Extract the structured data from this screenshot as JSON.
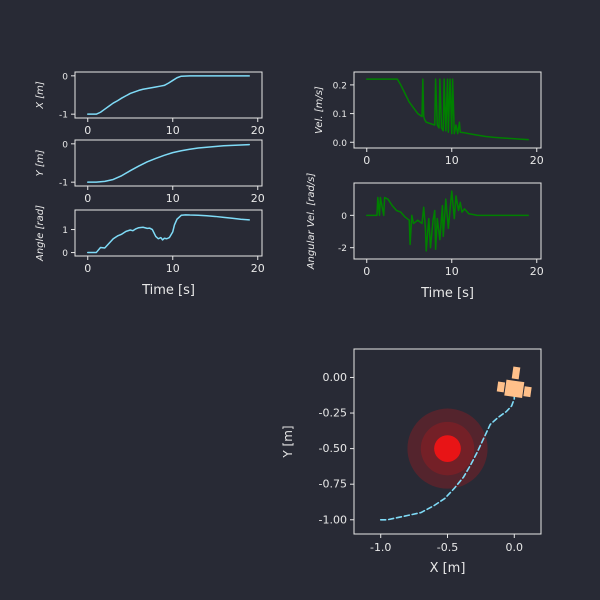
{
  "chart_data": [
    {
      "id": "x-plot",
      "type": "line",
      "ylabel": "X [m]",
      "xlabel": "",
      "xlim": [
        -1.5,
        20.5
      ],
      "ylim": [
        -1.1,
        0.1
      ],
      "xticks": [
        0,
        10,
        20
      ],
      "yticks": [
        -1,
        0
      ],
      "series": [
        {
          "color": "#7fdbf7",
          "x": [
            0,
            1,
            1.5,
            2,
            2.5,
            3,
            3.5,
            4,
            4.5,
            5,
            5.5,
            6,
            6.5,
            7,
            7.5,
            8,
            8.5,
            9,
            9.5,
            10,
            10.5,
            11,
            12,
            13,
            14,
            15,
            16,
            17,
            18,
            19
          ],
          "y": [
            -1,
            -1,
            -0.95,
            -0.87,
            -0.79,
            -0.71,
            -0.65,
            -0.58,
            -0.52,
            -0.46,
            -0.42,
            -0.38,
            -0.35,
            -0.33,
            -0.31,
            -0.29,
            -0.27,
            -0.25,
            -0.19,
            -0.12,
            -0.05,
            -0.01,
            0,
            0,
            0,
            0,
            0,
            0,
            0,
            0
          ]
        }
      ]
    },
    {
      "id": "y-plot",
      "type": "line",
      "ylabel": "Y [m]",
      "xlabel": "",
      "xlim": [
        -1.5,
        20.5
      ],
      "ylim": [
        -1.1,
        0.1
      ],
      "xticks": [
        0,
        10,
        20
      ],
      "yticks": [
        -1,
        0
      ],
      "series": [
        {
          "color": "#7fdbf7",
          "x": [
            0,
            1,
            2,
            3,
            4,
            5,
            6,
            7,
            8,
            9,
            10,
            11,
            12,
            13,
            14,
            15,
            16,
            17,
            18,
            19
          ],
          "y": [
            -1,
            -1,
            -0.98,
            -0.93,
            -0.83,
            -0.7,
            -0.58,
            -0.47,
            -0.38,
            -0.3,
            -0.23,
            -0.18,
            -0.14,
            -0.11,
            -0.09,
            -0.07,
            -0.05,
            -0.04,
            -0.03,
            -0.02
          ]
        }
      ]
    },
    {
      "id": "angle-plot",
      "type": "line",
      "ylabel": "Angle [rad]",
      "xlabel": "Time [s]",
      "xlim": [
        -1.5,
        20.5
      ],
      "ylim": [
        -0.15,
        1.85
      ],
      "xticks": [
        0,
        10,
        20
      ],
      "yticks": [
        0,
        1
      ],
      "series": [
        {
          "color": "#7fdbf7",
          "x": [
            0,
            1,
            1.5,
            2,
            2.5,
            3,
            3.5,
            4,
            4.5,
            5,
            5.3,
            5.6,
            6,
            6.5,
            7,
            7.3,
            7.6,
            8,
            8.3,
            8.6,
            8.8,
            9,
            9.3,
            9.6,
            10,
            10.2,
            10.5,
            11,
            11.5,
            12,
            13,
            14,
            15,
            16,
            17,
            18,
            19
          ],
          "y": [
            0,
            0,
            0.22,
            0.2,
            0.4,
            0.6,
            0.72,
            0.8,
            0.92,
            0.98,
            0.95,
            1.02,
            1.08,
            1.1,
            1.05,
            1.06,
            1.0,
            0.7,
            0.6,
            0.65,
            0.55,
            0.62,
            0.6,
            0.65,
            0.9,
            1.2,
            1.45,
            1.62,
            1.64,
            1.63,
            1.62,
            1.6,
            1.57,
            1.53,
            1.49,
            1.45,
            1.42
          ]
        }
      ]
    },
    {
      "id": "vel-plot",
      "type": "line",
      "ylabel": "Vel. [m/s]",
      "xlabel": "",
      "xlim": [
        -1.5,
        20.5
      ],
      "ylim": [
        -0.02,
        0.245
      ],
      "xticks": [
        0,
        10,
        20
      ],
      "yticks": [
        0.0,
        0.1,
        0.2
      ],
      "series": [
        {
          "color": "#008000",
          "x": [
            0,
            1,
            2,
            3,
            3.6,
            4,
            4.5,
            5,
            5.5,
            6,
            6.5,
            6.6,
            6.7,
            6.8,
            7,
            7.5,
            8,
            8.1,
            8.3,
            8.5,
            8.6,
            8.8,
            9,
            9.1,
            9.3,
            9.5,
            9.6,
            9.8,
            10,
            10.1,
            10.3,
            10.5,
            10.7,
            10.9,
            11,
            11.5,
            12,
            13,
            14,
            15,
            16,
            17,
            18,
            19
          ],
          "y": [
            0.22,
            0.22,
            0.22,
            0.22,
            0.22,
            0.2,
            0.17,
            0.14,
            0.12,
            0.1,
            0.09,
            0.22,
            0.09,
            0.08,
            0.07,
            0.065,
            0.06,
            0.22,
            0.06,
            0.05,
            0.22,
            0.05,
            0.04,
            0.22,
            0.04,
            0.22,
            0.035,
            0.22,
            0.03,
            0.22,
            0.03,
            0.06,
            0.03,
            0.07,
            0.035,
            0.033,
            0.03,
            0.025,
            0.02,
            0.017,
            0.015,
            0.013,
            0.011,
            0.009
          ]
        }
      ]
    },
    {
      "id": "angvel-plot",
      "type": "line",
      "ylabel": "Angular Vel. [rad/s]",
      "xlabel": "Time [s]",
      "xlim": [
        -1.5,
        20.5
      ],
      "ylim": [
        -2.7,
        2.0
      ],
      "xticks": [
        0,
        10,
        20
      ],
      "yticks": [
        -2,
        0
      ],
      "series": [
        {
          "color": "#008000",
          "x": [
            0,
            1,
            1.2,
            1.3,
            1.5,
            1.6,
            2,
            2.1,
            2.5,
            3,
            3.5,
            4,
            4.5,
            5,
            5.1,
            5.3,
            5.5,
            6,
            6.5,
            6.7,
            6.9,
            7,
            7.3,
            7.5,
            7.8,
            8,
            8.1,
            8.3,
            8.6,
            8.9,
            9,
            9.3,
            9.6,
            10,
            10.3,
            10.5,
            10.8,
            11,
            11.2,
            11.5,
            12,
            12.5,
            13,
            14,
            15,
            16,
            17,
            18,
            19
          ],
          "y": [
            0,
            0,
            0,
            1.1,
            0,
            1.1,
            0,
            1.1,
            1.0,
            0.6,
            0.3,
            0.2,
            -0.1,
            -0.3,
            -1.8,
            0,
            -0.5,
            -0.3,
            -0.5,
            0.5,
            -0.8,
            -2.2,
            -0.2,
            -2.0,
            -0.3,
            0.3,
            -2.1,
            -0.2,
            -1.5,
            0.6,
            -1.3,
            1.0,
            -0.8,
            1.5,
            -0.2,
            1.2,
            0.3,
            0.8,
            0.2,
            0.4,
            0.1,
            0.05,
            0,
            0,
            0,
            0,
            0,
            0,
            0
          ]
        }
      ]
    },
    {
      "id": "xy-plot",
      "type": "scatter",
      "xlabel": "X [m]",
      "ylabel": "Y [m]",
      "xlim": [
        -1.2,
        0.2
      ],
      "ylim": [
        -1.1,
        0.2
      ],
      "xticks": [
        -1.0,
        -0.5,
        0.0
      ],
      "yticks": [
        -1.0,
        -0.75,
        -0.5,
        -0.25,
        0.0
      ],
      "series": [
        {
          "color": "#7fdbf7",
          "dashed": true,
          "x": [
            -1.0,
            -0.95,
            -0.9,
            -0.8,
            -0.7,
            -0.6,
            -0.52,
            -0.45,
            -0.38,
            -0.33,
            -0.28,
            -0.23,
            -0.18,
            -0.12,
            -0.06,
            -0.02,
            0.0,
            0.0
          ],
          "y": [
            -1.0,
            -1.0,
            -0.99,
            -0.97,
            -0.95,
            -0.9,
            -0.85,
            -0.78,
            -0.7,
            -0.62,
            -0.53,
            -0.43,
            -0.33,
            -0.28,
            -0.24,
            -0.2,
            -0.15,
            -0.1
          ]
        }
      ],
      "obstacle": {
        "x": -0.5,
        "y": -0.5,
        "rings": [
          0.3,
          0.2
        ],
        "core": 0.1,
        "core_color": "#e81416",
        "ring_color": "#c8141a"
      },
      "robot": {
        "x": 0.0,
        "y": -0.08,
        "color": "#ffc08a"
      }
    }
  ]
}
